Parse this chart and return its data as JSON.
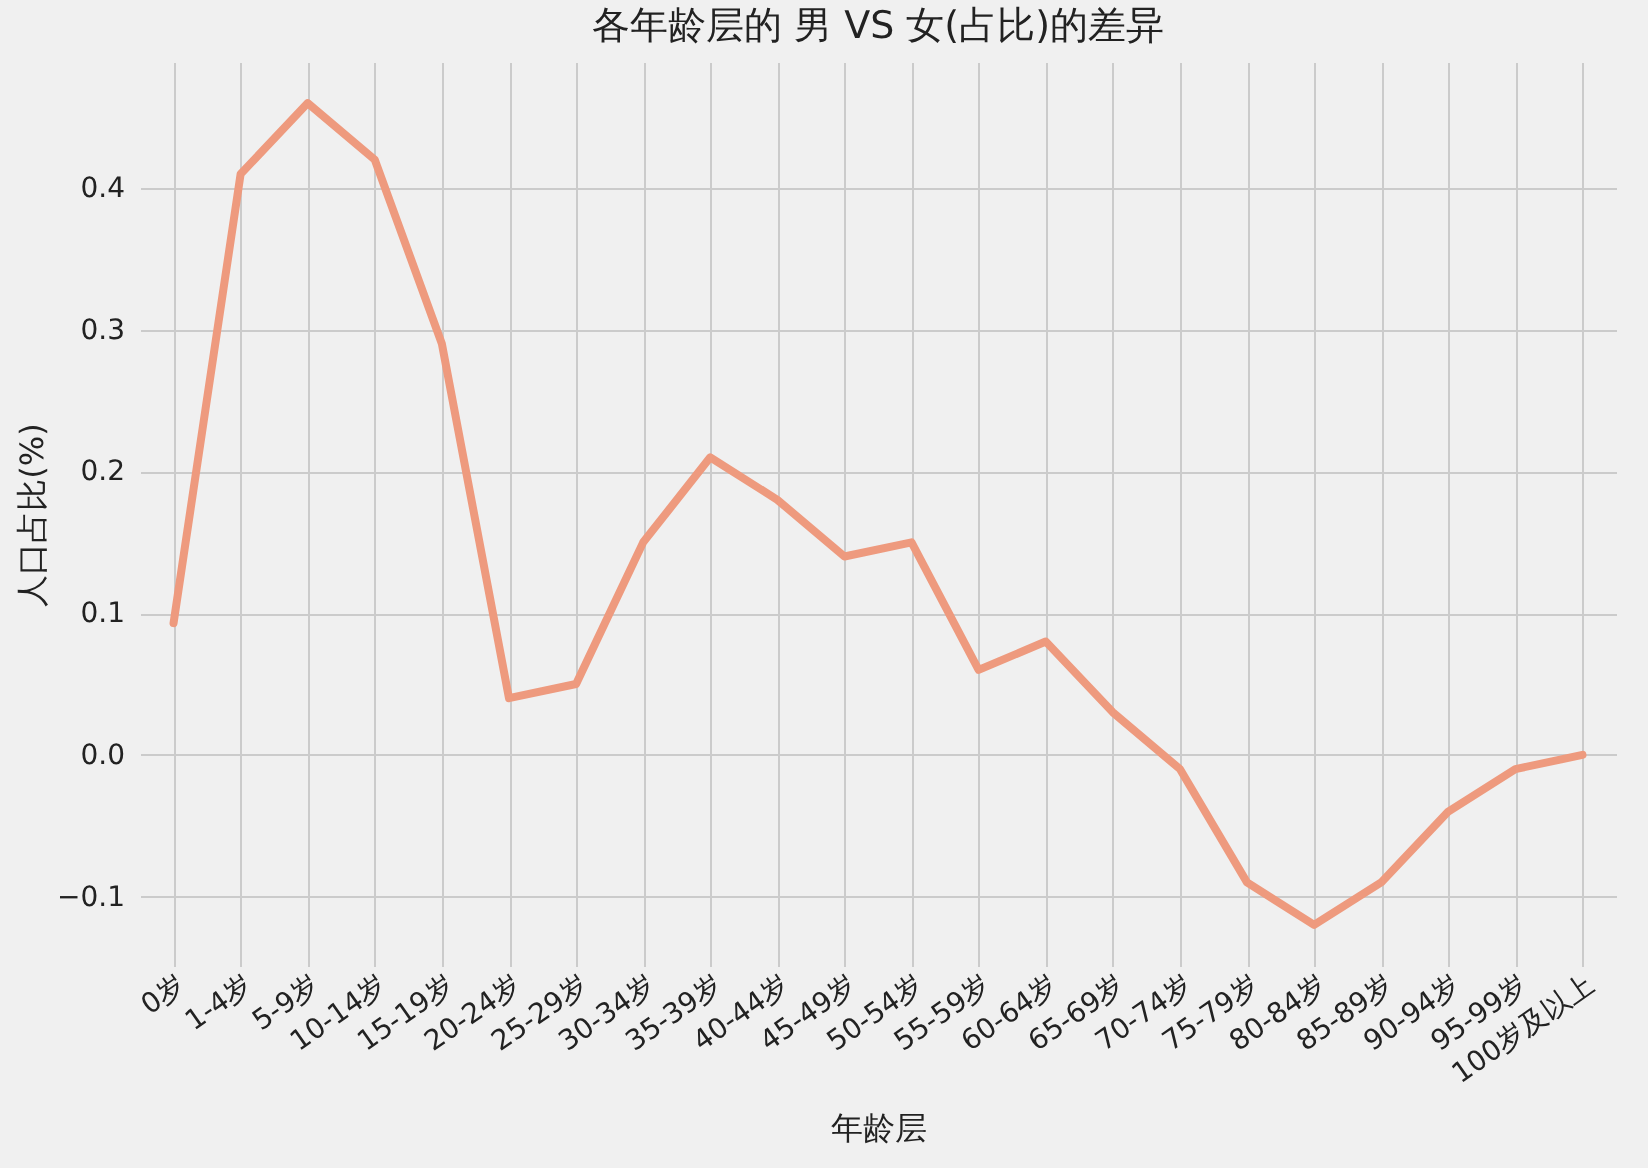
{
  "chart_data": {
    "type": "line",
    "title": "各年龄层的 男 VS 女(占比)的差异",
    "xlabel": "年龄层",
    "ylabel": "人口占比(%)",
    "categories": [
      "0岁",
      "1-4岁",
      "5-9岁",
      "10-14岁",
      "15-19岁",
      "20-24岁",
      "25-29岁",
      "30-34岁",
      "35-39岁",
      "40-44岁",
      "45-49岁",
      "50-54岁",
      "55-59岁",
      "60-64岁",
      "65-69岁",
      "70-74岁",
      "75-79岁",
      "80-84岁",
      "85-89岁",
      "90-94岁",
      "95-99岁",
      "100岁及以上"
    ],
    "series": [
      {
        "color": "#ee9a7e",
        "values": [
          0.093,
          0.41,
          0.46,
          0.42,
          0.29,
          0.04,
          0.05,
          0.15,
          0.21,
          0.18,
          0.14,
          0.15,
          0.06,
          0.08,
          0.03,
          -0.01,
          -0.09,
          -0.12,
          -0.09,
          -0.04,
          -0.01,
          0.0
        ]
      }
    ],
    "ylim": [
      -0.149,
      0.489
    ],
    "yticks": [
      {
        "value": -0.1,
        "label": "−0.1"
      },
      {
        "value": 0,
        "label": "0.0"
      },
      0.1,
      0.2,
      0.3,
      0.4
    ],
    "grid": true,
    "marker": "none",
    "line_style": "solid"
  }
}
